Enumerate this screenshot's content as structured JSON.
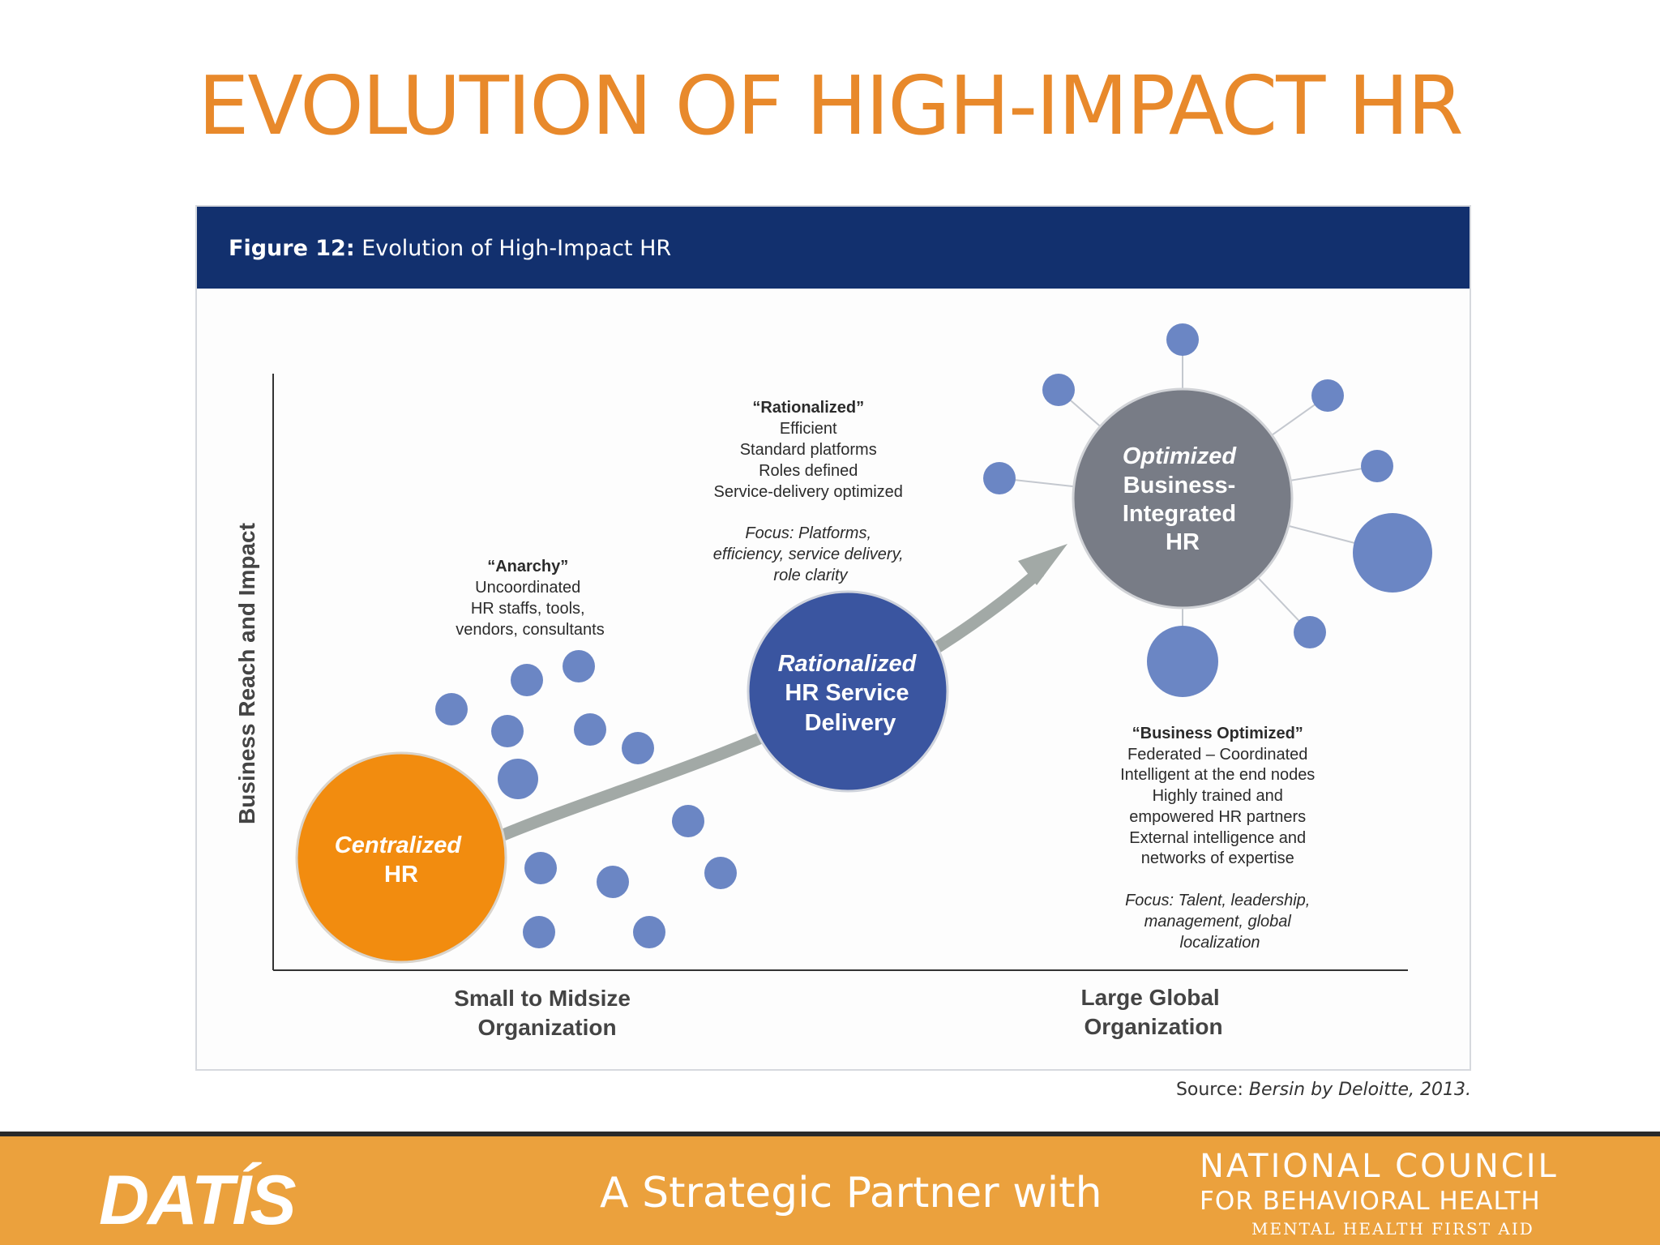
{
  "title": "EVOLUTION OF HIGH-IMPACT HR",
  "figure": {
    "caption_bold": "Figure 12:",
    "caption_text": "Evolution of High-Impact HR",
    "y_axis_label": "Business Reach and Impact",
    "x_axis_labels": {
      "left": [
        "Small to Midsize",
        "Organization"
      ],
      "right": [
        "Large Global",
        "Organization"
      ]
    },
    "stages": {
      "centralized": [
        "Centralized",
        "HR"
      ],
      "rationalized": [
        "Rationalized",
        "HR Service",
        "Delivery"
      ],
      "optimized": [
        "Optimized",
        "Business-",
        "Integrated",
        "HR"
      ]
    },
    "notes": {
      "anarchy": {
        "heading": "“Anarchy”",
        "lines": [
          "Uncoordinated",
          "HR staffs, tools,",
          "vendors, consultants"
        ]
      },
      "rationalized": {
        "heading": "“Rationalized”",
        "lines": [
          "Efficient",
          "Standard platforms",
          "Roles defined",
          "Service-delivery optimized"
        ],
        "focus": [
          "Focus: Platforms,",
          "efficiency, service delivery,",
          "role clarity"
        ]
      },
      "business_optimized": {
        "heading": "“Business Optimized”",
        "lines": [
          "Federated – Coordinated",
          "Intelligent at the end nodes",
          "Highly trained and",
          "empowered HR partners",
          "External intelligence and",
          "networks of expertise"
        ],
        "focus": [
          "Focus: Talent, leadership,",
          "management, global",
          "localization"
        ]
      }
    },
    "colors": {
      "centralized": "#f28c0f",
      "rationalized": "#3a55a0",
      "optimized": "#787c86",
      "dots": "#6b86c4",
      "arrow": "#a2a9a6"
    }
  },
  "source_label": "Source:",
  "source_text": "Bersin by Deloitte, 2013.",
  "footer": {
    "logo_text": "DATÍS",
    "partner_text": "A Strategic Partner with",
    "org_line1": "NATIONAL COUNCIL",
    "org_line2": "FOR BEHAVIORAL HEALTH",
    "org_line3": "MENTAL HEALTH FIRST AID"
  }
}
